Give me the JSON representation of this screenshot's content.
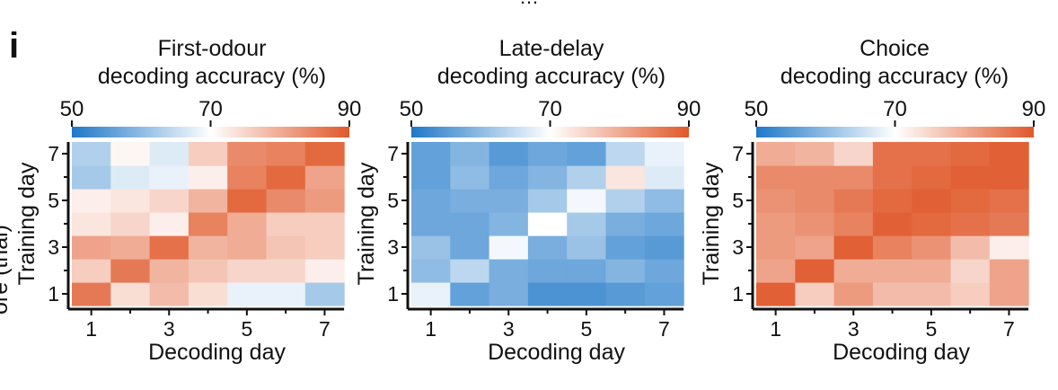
{
  "figure": {
    "top_fragment": "…",
    "panel_letter": "i",
    "left_edge_fragment": "ore (trial)"
  },
  "colorbar": {
    "ticks": [
      50,
      70,
      90
    ],
    "colors": [
      "#1f78c8",
      "#ffffff",
      "#e0582a"
    ]
  },
  "chart_data": [
    {
      "type": "heatmap",
      "title": "First-odour decoding accuracy (%)",
      "title_lines": [
        "First-odour",
        "decoding accuracy (%)"
      ],
      "xlabel": "Decoding day",
      "ylabel": "Training day",
      "x": [
        1,
        2,
        3,
        4,
        5,
        6,
        7
      ],
      "y": [
        1,
        2,
        3,
        4,
        5,
        6,
        7
      ],
      "x_tick_labels": [
        "1",
        "3",
        "5",
        "7"
      ],
      "y_tick_labels": [
        "1",
        "3",
        "5",
        "7"
      ],
      "clim": [
        50,
        90
      ],
      "values": [
        [
          86,
          74,
          78,
          74,
          68,
          68,
          62
        ],
        [
          76,
          86,
          79,
          77,
          75,
          75,
          72
        ],
        [
          81,
          80,
          87,
          79,
          80,
          77,
          76
        ],
        [
          73,
          75,
          72,
          85,
          80,
          76,
          76
        ],
        [
          72,
          73,
          75,
          79,
          88,
          84,
          82
        ],
        [
          62,
          67,
          68,
          72,
          85,
          88,
          81
        ],
        [
          63,
          71,
          67,
          76,
          84,
          85,
          88
        ]
      ]
    },
    {
      "type": "heatmap",
      "title": "Late-delay decoding accuracy (%)",
      "title_lines": [
        "Late-delay",
        "decoding accuracy (%)"
      ],
      "xlabel": "Decoding day",
      "ylabel": "Training day",
      "x": [
        1,
        2,
        3,
        4,
        5,
        6,
        7
      ],
      "y": [
        1,
        2,
        3,
        4,
        5,
        6,
        7
      ],
      "x_tick_labels": [
        "1",
        "3",
        "5",
        "7"
      ],
      "y_tick_labels": [
        "1",
        "3",
        "5",
        "7"
      ],
      "clim": [
        50,
        90
      ],
      "values": [
        [
          68,
          56,
          58,
          54,
          54,
          55,
          56
        ],
        [
          60,
          64,
          58,
          57,
          57,
          59,
          57
        ],
        [
          61,
          57,
          69,
          58,
          61,
          56,
          55
        ],
        [
          57,
          57,
          59,
          70,
          62,
          58,
          57
        ],
        [
          57,
          58,
          58,
          62,
          69,
          63,
          60
        ],
        [
          56,
          60,
          57,
          59,
          63,
          73,
          67
        ],
        [
          56,
          59,
          55,
          57,
          56,
          64,
          68
        ]
      ]
    },
    {
      "type": "heatmap",
      "title": "Choice decoding accuracy (%)",
      "title_lines": [
        "Choice",
        "decoding accuracy (%)"
      ],
      "xlabel": "Decoding day",
      "ylabel": "Training day",
      "x": [
        1,
        2,
        3,
        4,
        5,
        6,
        7
      ],
      "y": [
        1,
        2,
        3,
        4,
        5,
        6,
        7
      ],
      "x_tick_labels": [
        "1",
        "3",
        "5",
        "7"
      ],
      "y_tick_labels": [
        "1",
        "3",
        "5",
        "7"
      ],
      "clim": [
        50,
        90
      ],
      "values": [
        [
          89,
          76,
          82,
          78,
          78,
          76,
          81
        ],
        [
          81,
          89,
          80,
          80,
          80,
          75,
          81
        ],
        [
          82,
          81,
          89,
          85,
          83,
          78,
          72
        ],
        [
          82,
          83,
          85,
          89,
          88,
          87,
          86
        ],
        [
          83,
          84,
          86,
          88,
          89,
          88,
          87
        ],
        [
          84,
          84,
          84,
          87,
          88,
          89,
          89
        ],
        [
          80,
          79,
          75,
          87,
          87,
          88,
          89
        ]
      ]
    }
  ]
}
